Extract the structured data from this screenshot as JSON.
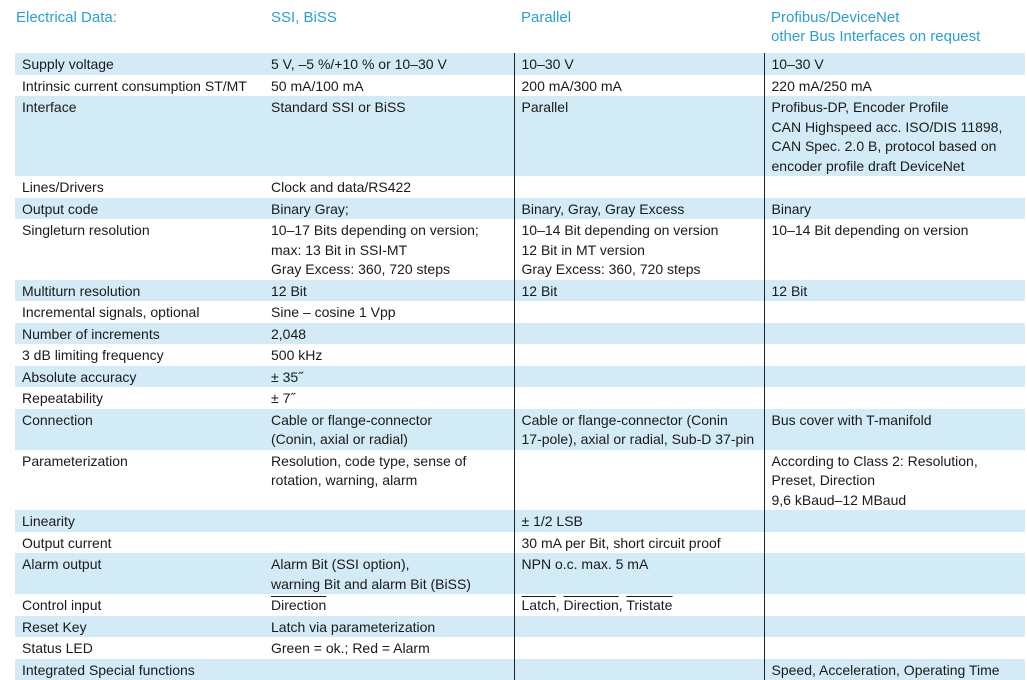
{
  "header": {
    "col0": "Electrical Data:",
    "col1": "SSI, BiSS",
    "col2": "Parallel",
    "col3_line1": "Profibus/DeviceNet",
    "col3_line2": "other Bus Interfaces on request"
  },
  "colors": {
    "accent": "#2a9fd6",
    "row_shade": "#d2ebf6",
    "divider": "#222222"
  },
  "rows": [
    {
      "label": "Supply voltage",
      "ssi": [
        "5 V, –5 %/+10 % or 10–30 V"
      ],
      "parallel": [
        "10–30 V"
      ],
      "bus": [
        "10–30 V"
      ]
    },
    {
      "label": "Intrinsic current consumption ST/MT",
      "ssi": [
        "50 mA/100 mA"
      ],
      "parallel": [
        "200 mA/300 mA"
      ],
      "bus": [
        "220 mA/250 mA"
      ]
    },
    {
      "label": "Interface",
      "ssi": [
        "Standard SSI or BiSS"
      ],
      "parallel": [
        "Parallel"
      ],
      "bus": [
        "Profibus-DP, Encoder Profile",
        "CAN Highspeed acc. ISO/DIS 11898,",
        "CAN Spec. 2.0 B, protocol based on",
        "encoder profile draft DeviceNet"
      ]
    },
    {
      "label": "Lines/Drivers",
      "ssi": [
        "Clock and data/RS422"
      ],
      "parallel": [],
      "bus": []
    },
    {
      "label": "Output code",
      "ssi": [
        "Binary Gray;"
      ],
      "parallel": [
        "Binary, Gray, Gray Excess"
      ],
      "bus": [
        "Binary"
      ]
    },
    {
      "label": "Singleturn resolution",
      "ssi": [
        "10–17 Bits depending on version;",
        "max: 13 Bit in SSI-MT",
        "Gray Excess: 360, 720 steps"
      ],
      "parallel": [
        "10–14 Bit depending on version",
        "12 Bit in MT version",
        "Gray Excess: 360, 720 steps"
      ],
      "bus": [
        "10–14 Bit depending on version"
      ]
    },
    {
      "label": "Multiturn resolution",
      "ssi": [
        "12 Bit"
      ],
      "parallel": [
        "12 Bit"
      ],
      "bus": [
        "12 Bit"
      ]
    },
    {
      "label": "Incremental signals, optional",
      "ssi": [
        "Sine – cosine 1 Vpp"
      ],
      "parallel": [],
      "bus": []
    },
    {
      "label": "Number of increments",
      "ssi": [
        "2,048"
      ],
      "parallel": [],
      "bus": []
    },
    {
      "label": "3 dB limiting frequency",
      "ssi": [
        "500 kHz"
      ],
      "parallel": [],
      "bus": []
    },
    {
      "label": "Absolute accuracy",
      "ssi": [
        "± 35˝"
      ],
      "parallel": [],
      "bus": []
    },
    {
      "label": "Repeatability",
      "ssi": [
        "± 7˝"
      ],
      "parallel": [],
      "bus": []
    },
    {
      "label": "Connection",
      "ssi": [
        "Cable or flange-connector",
        "(Conin, axial or radial)"
      ],
      "parallel": [
        "Cable or flange-connector (Conin",
        "17-pole), axial or radial, Sub-D 37-pin"
      ],
      "bus": [
        "Bus cover with T-manifold"
      ]
    },
    {
      "label": "Parameterization",
      "ssi": [
        "Resolution, code type, sense of",
        "rotation, warning, alarm"
      ],
      "parallel": [],
      "bus": [
        "According to Class 2: Resolution,",
        "Preset, Direction",
        "9,6 kBaud–12 MBaud"
      ]
    },
    {
      "label": "Linearity",
      "ssi": [],
      "parallel": [
        "± 1/2 LSB"
      ],
      "bus": []
    },
    {
      "label": "Output current",
      "ssi": [],
      "parallel": [
        "30 mA per Bit, short circuit proof"
      ],
      "bus": []
    },
    {
      "label": "Alarm output",
      "ssi": [
        "Alarm Bit (SSI option),",
        "warning Bit and alarm Bit (BiSS)"
      ],
      "parallel": [
        "NPN o.c. max. 5 mA"
      ],
      "bus": []
    },
    {
      "label": "Control input",
      "ssi_overline": [
        "Direction"
      ],
      "parallel_overline": [
        "Latch",
        "Direction",
        "Tristate"
      ],
      "parallel_sep": ", ",
      "bus": []
    },
    {
      "label": "Reset Key",
      "ssi": [
        "Latch via parameterization"
      ],
      "parallel": [],
      "bus": []
    },
    {
      "label": "Status LED",
      "ssi": [
        "Green = ok.; Red = Alarm"
      ],
      "parallel": [],
      "bus": []
    },
    {
      "label": "Integrated Special functions",
      "ssi": [],
      "parallel": [],
      "bus": [
        "Speed, Acceleration, Operating Time"
      ]
    }
  ]
}
